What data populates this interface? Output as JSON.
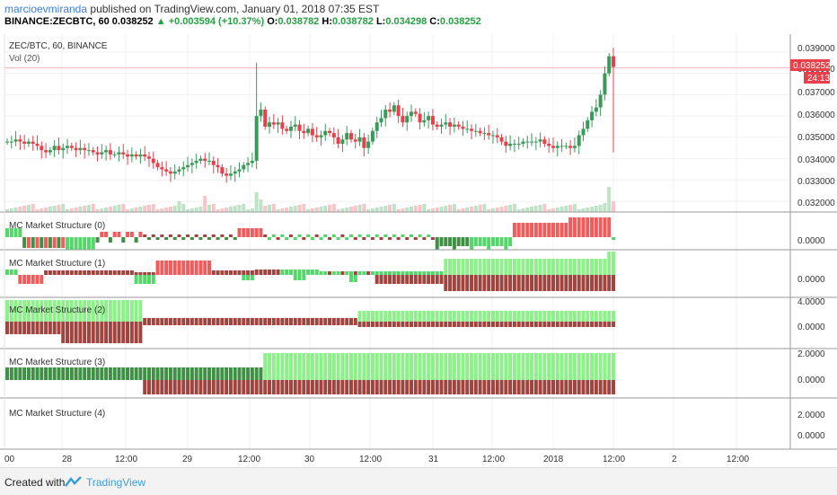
{
  "header": {
    "author": "marcioevmiranda",
    "published_text": "published on TradingView.com, January 01, 2018 07:35 EST",
    "symbol_line": "BINANCE:ZECBTC, 60",
    "last": "0.038252",
    "change": "▲ +0.003594 (+10.37%)",
    "o_label": "O:",
    "o_value": "0.038782",
    "h_label": "H:",
    "h_value": "0.038782",
    "l_label": "L:",
    "l_value": "0.034298",
    "c_label": "C:",
    "c_value": "0.038252"
  },
  "footer": {
    "created_with": "Created with",
    "brand": "TradingView"
  },
  "chart_data": [
    {
      "type": "candlestick",
      "title": "ZEC/BTC, 60, BINANCE",
      "subtitle": "Vol (20)",
      "ylim": [
        0.0315,
        0.0395
      ],
      "y_ticks": [
        "0.039000",
        "0.038000",
        "0.037000",
        "0.036000",
        "0.035000",
        "0.034000",
        "0.033000",
        "0.032000"
      ],
      "last_price_label": "0.038252",
      "countdown_label": "24:13",
      "x_tick_labels": [
        "00",
        "28",
        "12:00",
        "29",
        "12:00",
        "30",
        "12:00",
        "31",
        "12:00",
        "2018",
        "12:00",
        "2",
        "12:00"
      ],
      "closes": [
        0.0348,
        0.0348,
        0.0349,
        0.0348,
        0.0347,
        0.0348,
        0.0347,
        0.0346,
        0.0344,
        0.0343,
        0.0344,
        0.0346,
        0.0344,
        0.0345,
        0.0346,
        0.0345,
        0.0344,
        0.0345,
        0.0344,
        0.0344,
        0.0343,
        0.0342,
        0.0343,
        0.0344,
        0.0342,
        0.0342,
        0.0343,
        0.0342,
        0.0341,
        0.0342,
        0.0341,
        0.0342,
        0.0341,
        0.034,
        0.0338,
        0.0336,
        0.0335,
        0.0334,
        0.0333,
        0.0334,
        0.0335,
        0.0336,
        0.0337,
        0.0338,
        0.0339,
        0.034,
        0.0339,
        0.0339,
        0.0337,
        0.0336,
        0.0333,
        0.0332,
        0.0333,
        0.0334,
        0.0335,
        0.0337,
        0.0338,
        0.0339,
        0.036,
        0.0363,
        0.0355,
        0.0357,
        0.0356,
        0.0357,
        0.0354,
        0.0353,
        0.0355,
        0.0356,
        0.0353,
        0.0352,
        0.0354,
        0.0351,
        0.035,
        0.0351,
        0.0353,
        0.0352,
        0.035,
        0.0347,
        0.0349,
        0.0352,
        0.0349,
        0.0348,
        0.035,
        0.0345,
        0.0348,
        0.0353,
        0.0357,
        0.0359,
        0.0363,
        0.0362,
        0.0365,
        0.036,
        0.0357,
        0.036,
        0.0362,
        0.0361,
        0.0357,
        0.0358,
        0.036,
        0.0356,
        0.0355,
        0.0356,
        0.0357,
        0.0355,
        0.0356,
        0.0355,
        0.0354,
        0.0354,
        0.0353,
        0.0353,
        0.0352,
        0.0352,
        0.0351,
        0.0351,
        0.035,
        0.0348,
        0.0346,
        0.0347,
        0.0347,
        0.0347,
        0.0348,
        0.0348,
        0.0348,
        0.0348,
        0.0349,
        0.0347,
        0.0346,
        0.0345,
        0.0346,
        0.0346,
        0.0346,
        0.0345,
        0.0346,
        0.0351,
        0.0354,
        0.0358,
        0.0362,
        0.0364,
        0.037,
        0.038,
        0.0388,
        0.0383
      ],
      "volume_level": "Vol (20)"
    },
    {
      "type": "bar",
      "title": "MC Market Structure (0)",
      "y_ticks": [
        "0.0000"
      ],
      "pattern": "up1:0-3 down1:0-14 mixed_small:15-53 up:54-82 mixed:83-130 down:131-141 small:142-150"
    },
    {
      "type": "bar",
      "title": "MC Market Structure (1)",
      "y_ticks": [
        "0.0000"
      ]
    },
    {
      "type": "bar",
      "title": "MC Market Structure (2)",
      "y_ticks": [
        "4.0000",
        "0.0000"
      ]
    },
    {
      "type": "bar",
      "title": "MC Market Structure (3)",
      "y_ticks": [
        "2.0000",
        "0.0000"
      ]
    },
    {
      "type": "bar",
      "title": "MC Market Structure (4)",
      "y_ticks": [
        "2.0000",
        "0.0000"
      ]
    }
  ]
}
